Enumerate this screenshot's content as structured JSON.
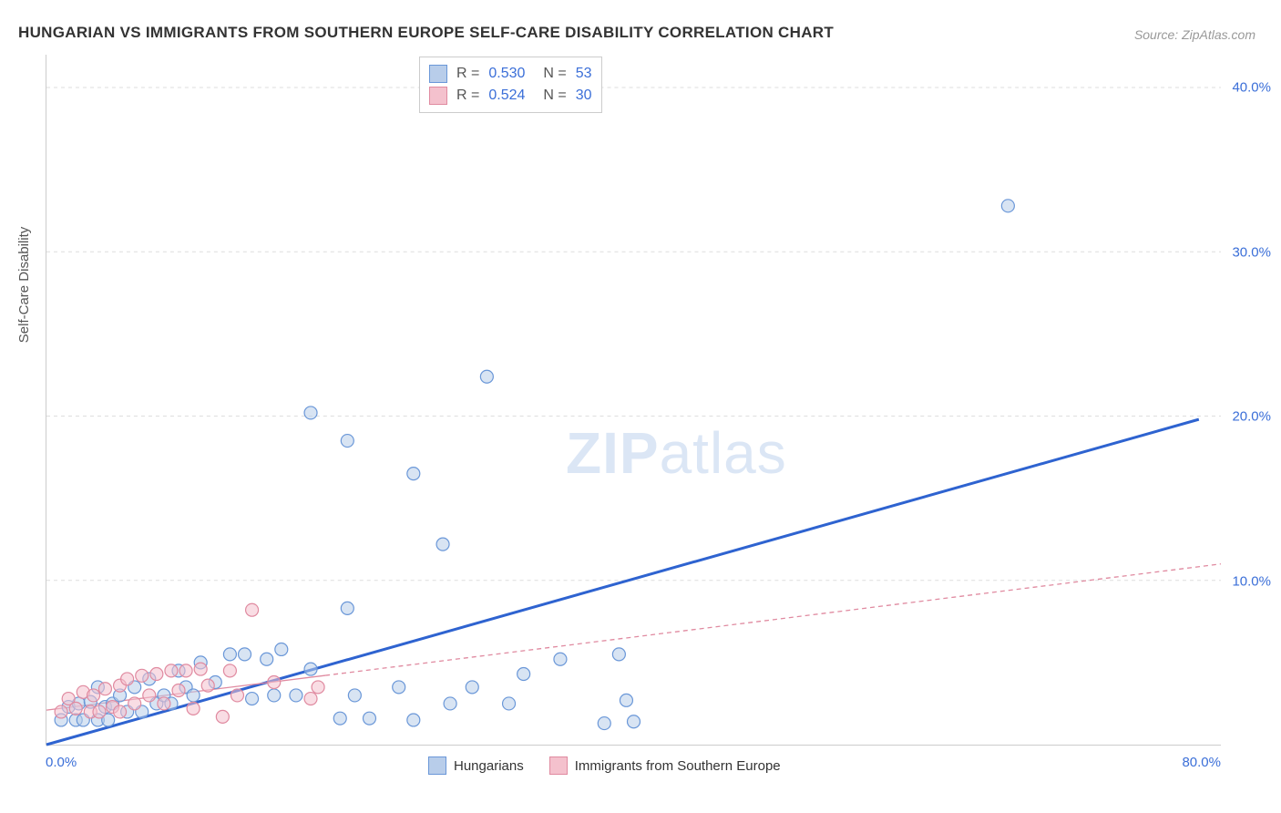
{
  "title": "HUNGARIAN VS IMMIGRANTS FROM SOUTHERN EUROPE SELF-CARE DISABILITY CORRELATION CHART",
  "source": "Source: ZipAtlas.com",
  "ylabel": "Self-Care Disability",
  "watermark_zip": "ZIP",
  "watermark_atlas": "atlas",
  "chart": {
    "type": "scatter",
    "xlim": [
      0,
      80
    ],
    "ylim": [
      0,
      42
    ],
    "x_tick_min_label": "0.0%",
    "x_tick_max_label": "80.0%",
    "y_ticks": [
      10,
      20,
      30,
      40
    ],
    "y_tick_labels": [
      "10.0%",
      "20.0%",
      "30.0%",
      "40.0%"
    ],
    "background_color": "#ffffff",
    "grid_color": "#dddddd",
    "axis_color": "#cccccc",
    "tick_label_color": "#3b6fd8",
    "tick_fontsize": 15,
    "title_fontsize": 17,
    "title_color": "#333333",
    "marker_radius": 7,
    "marker_stroke_width": 1.2,
    "series": [
      {
        "name": "Hungarians",
        "fill": "#b8cdea",
        "stroke": "#6a97d8",
        "fill_opacity": 0.55,
        "R": "0.530",
        "N": "53",
        "trend": {
          "x1": 0,
          "y1": 0,
          "x2": 78.5,
          "y2": 19.8,
          "stroke": "#2e63d0",
          "width": 3,
          "dash": "none",
          "extrapolate_from_x": 0
        },
        "points": [
          [
            1,
            1.5
          ],
          [
            1.5,
            2.3
          ],
          [
            2,
            1.5
          ],
          [
            2.2,
            2.5
          ],
          [
            2.5,
            1.5
          ],
          [
            3,
            2.6
          ],
          [
            3.5,
            1.5
          ],
          [
            3.5,
            3.5
          ],
          [
            4,
            2.3
          ],
          [
            4.2,
            1.5
          ],
          [
            4.5,
            2.5
          ],
          [
            5,
            3
          ],
          [
            5.5,
            2
          ],
          [
            6,
            3.5
          ],
          [
            6.5,
            2
          ],
          [
            7,
            4
          ],
          [
            7.5,
            2.5
          ],
          [
            8,
            3
          ],
          [
            8.5,
            2.5
          ],
          [
            9,
            4.5
          ],
          [
            9.5,
            3.5
          ],
          [
            10,
            3
          ],
          [
            10.5,
            5
          ],
          [
            11.5,
            3.8
          ],
          [
            12.5,
            5.5
          ],
          [
            13.5,
            5.5
          ],
          [
            14,
            2.8
          ],
          [
            15,
            5.2
          ],
          [
            15.5,
            3
          ],
          [
            16,
            5.8
          ],
          [
            17,
            3
          ],
          [
            18,
            4.6
          ],
          [
            18,
            20.2
          ],
          [
            20,
            1.6
          ],
          [
            20.5,
            8.3
          ],
          [
            20.5,
            18.5
          ],
          [
            21,
            3
          ],
          [
            22,
            1.6
          ],
          [
            24,
            3.5
          ],
          [
            25,
            16.5
          ],
          [
            25,
            1.5
          ],
          [
            27,
            12.2
          ],
          [
            27.5,
            2.5
          ],
          [
            29,
            3.5
          ],
          [
            30,
            22.4
          ],
          [
            31.5,
            2.5
          ],
          [
            32.5,
            4.3
          ],
          [
            35,
            5.2
          ],
          [
            38,
            1.3
          ],
          [
            39.5,
            2.7
          ],
          [
            39,
            5.5
          ],
          [
            40,
            1.4
          ],
          [
            65.5,
            32.8
          ]
        ]
      },
      {
        "name": "Immigrants from Southern Europe",
        "fill": "#f4c1cd",
        "stroke": "#e08aa0",
        "fill_opacity": 0.55,
        "R": "0.524",
        "N": "30",
        "trend": {
          "x1": 0,
          "y1": 2.1,
          "x2": 80,
          "y2": 11.0,
          "stroke": "#e08aa0",
          "width": 1.3,
          "dash": "5,4",
          "extrapolate_from_x": 19
        },
        "points": [
          [
            1,
            2.0
          ],
          [
            1.5,
            2.8
          ],
          [
            2,
            2.2
          ],
          [
            2.5,
            3.2
          ],
          [
            3,
            2.0
          ],
          [
            3.2,
            3.0
          ],
          [
            3.6,
            2.0
          ],
          [
            4,
            3.4
          ],
          [
            4.5,
            2.3
          ],
          [
            5,
            3.6
          ],
          [
            5,
            2.0
          ],
          [
            5.5,
            4
          ],
          [
            6,
            2.5
          ],
          [
            6.5,
            4.2
          ],
          [
            7,
            3
          ],
          [
            7.5,
            4.3
          ],
          [
            8,
            2.5
          ],
          [
            8.5,
            4.5
          ],
          [
            9,
            3.3
          ],
          [
            9.5,
            4.5
          ],
          [
            10,
            2.2
          ],
          [
            10.5,
            4.6
          ],
          [
            11,
            3.6
          ],
          [
            12,
            1.7
          ],
          [
            12.5,
            4.5
          ],
          [
            13,
            3
          ],
          [
            14,
            8.2
          ],
          [
            15.5,
            3.8
          ],
          [
            18,
            2.8
          ],
          [
            18.5,
            3.5
          ]
        ]
      }
    ]
  },
  "legend_top": {
    "r_label": "R =",
    "n_label": "N ="
  },
  "legend_bottom": {
    "items": [
      "Hungarians",
      "Immigrants from Southern Europe"
    ]
  }
}
